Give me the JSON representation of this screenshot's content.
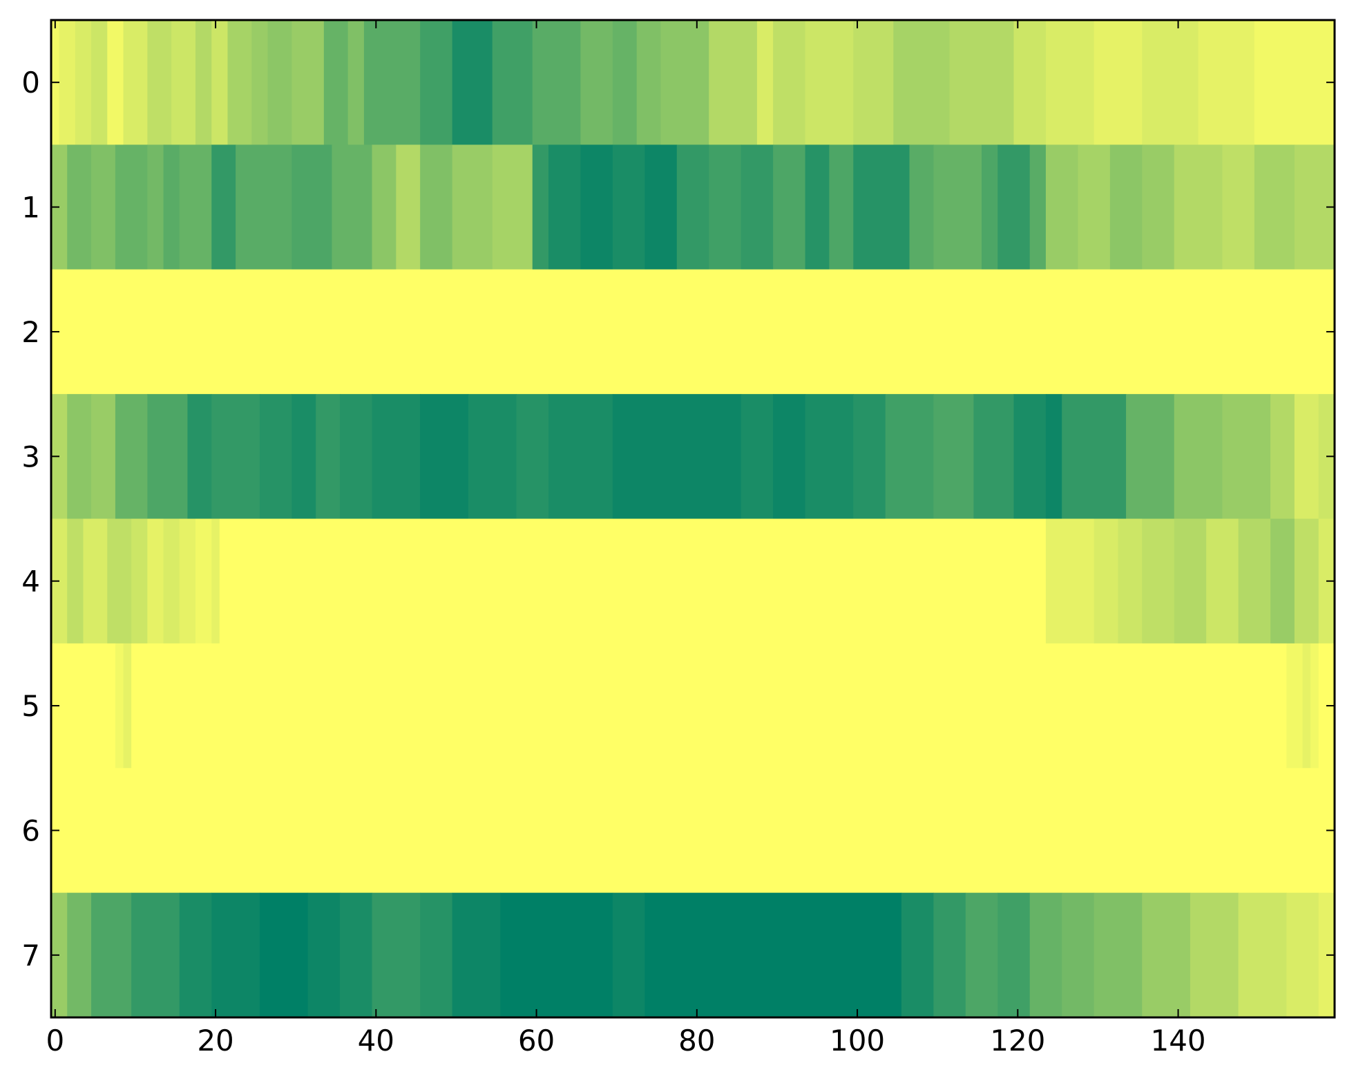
{
  "chart_data": {
    "type": "heatmap",
    "title": "",
    "xlabel": "",
    "ylabel": "",
    "colormap": "summer",
    "colors": {
      "low": "#008066",
      "high": "#ffff66"
    },
    "value_range": [
      0,
      1
    ],
    "xlim": [
      -0.5,
      159.5
    ],
    "ylim": [
      7.5,
      -0.5
    ],
    "n_columns": 160,
    "x_ticks": [
      0,
      20,
      40,
      60,
      80,
      100,
      120,
      140
    ],
    "x_tick_labels": [
      "0",
      "20",
      "40",
      "60",
      "80",
      "100",
      "120",
      "140"
    ],
    "y_ticks": [
      0,
      1,
      2,
      3,
      4,
      5,
      6,
      7
    ],
    "y_tick_labels": [
      "0",
      "1",
      "2",
      "3",
      "4",
      "5",
      "6",
      "7"
    ],
    "rows": [
      {
        "row": 0,
        "segments": [
          [
            0,
            1,
            0.95
          ],
          [
            1,
            3,
            0.9
          ],
          [
            3,
            5,
            0.85
          ],
          [
            5,
            7,
            0.8
          ],
          [
            7,
            9,
            0.95
          ],
          [
            9,
            12,
            0.85
          ],
          [
            12,
            15,
            0.75
          ],
          [
            15,
            18,
            0.8
          ],
          [
            18,
            20,
            0.7
          ],
          [
            20,
            22,
            0.8
          ],
          [
            22,
            25,
            0.65
          ],
          [
            25,
            27,
            0.6
          ],
          [
            27,
            30,
            0.55
          ],
          [
            30,
            34,
            0.6
          ],
          [
            34,
            37,
            0.4
          ],
          [
            37,
            39,
            0.5
          ],
          [
            39,
            46,
            0.35
          ],
          [
            46,
            50,
            0.25
          ],
          [
            50,
            55,
            0.1
          ],
          [
            55,
            60,
            0.25
          ],
          [
            60,
            66,
            0.35
          ],
          [
            66,
            70,
            0.45
          ],
          [
            70,
            73,
            0.4
          ],
          [
            73,
            76,
            0.5
          ],
          [
            76,
            82,
            0.55
          ],
          [
            82,
            88,
            0.7
          ],
          [
            88,
            90,
            0.85
          ],
          [
            90,
            94,
            0.75
          ],
          [
            94,
            100,
            0.8
          ],
          [
            100,
            105,
            0.75
          ],
          [
            105,
            112,
            0.65
          ],
          [
            112,
            120,
            0.7
          ],
          [
            120,
            124,
            0.8
          ],
          [
            124,
            130,
            0.85
          ],
          [
            130,
            136,
            0.9
          ],
          [
            136,
            143,
            0.85
          ],
          [
            143,
            150,
            0.9
          ],
          [
            150,
            160,
            0.95
          ]
        ]
      },
      {
        "row": 1,
        "segments": [
          [
            0,
            2,
            0.6
          ],
          [
            2,
            5,
            0.45
          ],
          [
            5,
            8,
            0.5
          ],
          [
            8,
            12,
            0.4
          ],
          [
            12,
            14,
            0.45
          ],
          [
            14,
            16,
            0.35
          ],
          [
            16,
            20,
            0.4
          ],
          [
            20,
            23,
            0.2
          ],
          [
            23,
            30,
            0.35
          ],
          [
            30,
            35,
            0.3
          ],
          [
            35,
            40,
            0.4
          ],
          [
            40,
            43,
            0.55
          ],
          [
            43,
            46,
            0.7
          ],
          [
            46,
            50,
            0.5
          ],
          [
            50,
            55,
            0.6
          ],
          [
            55,
            60,
            0.65
          ],
          [
            60,
            62,
            0.2
          ],
          [
            62,
            66,
            0.1
          ],
          [
            66,
            70,
            0.05
          ],
          [
            70,
            74,
            0.1
          ],
          [
            74,
            78,
            0.05
          ],
          [
            78,
            82,
            0.2
          ],
          [
            82,
            86,
            0.25
          ],
          [
            86,
            90,
            0.2
          ],
          [
            90,
            94,
            0.3
          ],
          [
            94,
            97,
            0.15
          ],
          [
            97,
            100,
            0.3
          ],
          [
            100,
            107,
            0.15
          ],
          [
            107,
            110,
            0.35
          ],
          [
            110,
            116,
            0.4
          ],
          [
            116,
            118,
            0.3
          ],
          [
            118,
            122,
            0.2
          ],
          [
            122,
            124,
            0.35
          ],
          [
            124,
            128,
            0.6
          ],
          [
            128,
            132,
            0.65
          ],
          [
            132,
            136,
            0.55
          ],
          [
            136,
            140,
            0.6
          ],
          [
            140,
            146,
            0.7
          ],
          [
            146,
            150,
            0.75
          ],
          [
            150,
            155,
            0.65
          ],
          [
            155,
            160,
            0.7
          ]
        ]
      },
      {
        "row": 2,
        "segments": [
          [
            0,
            160,
            1.0
          ]
        ]
      },
      {
        "row": 3,
        "segments": [
          [
            0,
            2,
            0.7
          ],
          [
            2,
            5,
            0.55
          ],
          [
            5,
            8,
            0.6
          ],
          [
            8,
            12,
            0.4
          ],
          [
            12,
            17,
            0.3
          ],
          [
            17,
            20,
            0.15
          ],
          [
            20,
            26,
            0.2
          ],
          [
            26,
            30,
            0.15
          ],
          [
            30,
            33,
            0.1
          ],
          [
            33,
            36,
            0.2
          ],
          [
            36,
            40,
            0.15
          ],
          [
            40,
            46,
            0.1
          ],
          [
            46,
            52,
            0.05
          ],
          [
            52,
            58,
            0.1
          ],
          [
            58,
            62,
            0.15
          ],
          [
            62,
            70,
            0.1
          ],
          [
            70,
            86,
            0.05
          ],
          [
            86,
            90,
            0.1
          ],
          [
            90,
            94,
            0.05
          ],
          [
            94,
            100,
            0.1
          ],
          [
            100,
            104,
            0.15
          ],
          [
            104,
            110,
            0.25
          ],
          [
            110,
            115,
            0.3
          ],
          [
            115,
            120,
            0.2
          ],
          [
            120,
            124,
            0.1
          ],
          [
            124,
            126,
            0.05
          ],
          [
            126,
            134,
            0.2
          ],
          [
            134,
            140,
            0.4
          ],
          [
            140,
            146,
            0.55
          ],
          [
            146,
            152,
            0.6
          ],
          [
            152,
            155,
            0.7
          ],
          [
            155,
            158,
            0.85
          ],
          [
            158,
            160,
            0.8
          ]
        ]
      },
      {
        "row": 4,
        "segments": [
          [
            0,
            2,
            0.85
          ],
          [
            2,
            4,
            0.75
          ],
          [
            4,
            7,
            0.85
          ],
          [
            7,
            10,
            0.75
          ],
          [
            10,
            12,
            0.8
          ],
          [
            12,
            14,
            0.9
          ],
          [
            14,
            16,
            0.85
          ],
          [
            16,
            18,
            0.9
          ],
          [
            18,
            20,
            0.95
          ],
          [
            20,
            21,
            0.9
          ],
          [
            21,
            124,
            1.0
          ],
          [
            124,
            130,
            0.9
          ],
          [
            130,
            133,
            0.85
          ],
          [
            133,
            136,
            0.8
          ],
          [
            136,
            140,
            0.75
          ],
          [
            140,
            144,
            0.7
          ],
          [
            144,
            148,
            0.8
          ],
          [
            148,
            152,
            0.7
          ],
          [
            152,
            155,
            0.6
          ],
          [
            155,
            158,
            0.75
          ],
          [
            158,
            160,
            0.85
          ]
        ]
      },
      {
        "row": 5,
        "segments": [
          [
            0,
            8,
            1.0
          ],
          [
            8,
            9,
            0.95
          ],
          [
            9,
            10,
            0.9
          ],
          [
            10,
            154,
            1.0
          ],
          [
            154,
            156,
            0.95
          ],
          [
            156,
            157,
            0.9
          ],
          [
            157,
            158,
            0.95
          ],
          [
            158,
            160,
            1.0
          ]
        ]
      },
      {
        "row": 6,
        "segments": [
          [
            0,
            160,
            1.0
          ]
        ]
      },
      {
        "row": 7,
        "segments": [
          [
            0,
            2,
            0.6
          ],
          [
            2,
            5,
            0.45
          ],
          [
            5,
            10,
            0.3
          ],
          [
            10,
            16,
            0.2
          ],
          [
            16,
            20,
            0.1
          ],
          [
            20,
            26,
            0.05
          ],
          [
            26,
            32,
            0.0
          ],
          [
            32,
            36,
            0.05
          ],
          [
            36,
            40,
            0.1
          ],
          [
            40,
            46,
            0.2
          ],
          [
            46,
            50,
            0.15
          ],
          [
            50,
            56,
            0.05
          ],
          [
            56,
            70,
            0.0
          ],
          [
            70,
            74,
            0.05
          ],
          [
            74,
            106,
            0.0
          ],
          [
            106,
            110,
            0.1
          ],
          [
            110,
            114,
            0.2
          ],
          [
            114,
            118,
            0.3
          ],
          [
            118,
            122,
            0.25
          ],
          [
            122,
            126,
            0.4
          ],
          [
            126,
            130,
            0.45
          ],
          [
            130,
            136,
            0.5
          ],
          [
            136,
            142,
            0.6
          ],
          [
            142,
            148,
            0.7
          ],
          [
            148,
            154,
            0.8
          ],
          [
            154,
            158,
            0.85
          ],
          [
            158,
            160,
            0.9
          ]
        ]
      }
    ]
  }
}
